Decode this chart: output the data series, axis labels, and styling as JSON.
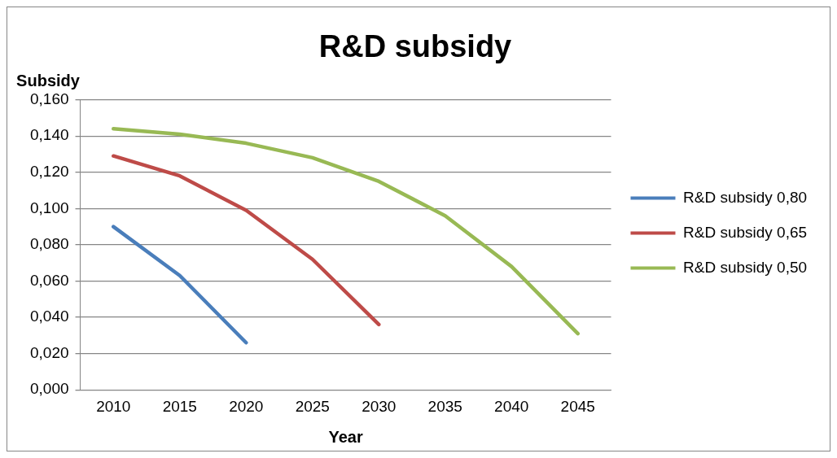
{
  "chart_data": {
    "type": "line",
    "title": "R&D subsidy",
    "xlabel": "Year",
    "ylabel": "Subsidy",
    "categories": [
      "2010",
      "2015",
      "2020",
      "2025",
      "2030",
      "2035",
      "2040",
      "2045"
    ],
    "series": [
      {
        "name": "R&D subsidy 0,80",
        "color": "#4a7ebb",
        "values": [
          0.09,
          0.063,
          0.026,
          null,
          null,
          null,
          null,
          null
        ]
      },
      {
        "name": "R&D subsidy 0,65",
        "color": "#be4b48",
        "values": [
          0.129,
          0.118,
          0.099,
          0.072,
          0.036,
          null,
          null,
          null
        ]
      },
      {
        "name": "R&D subsidy 0,50",
        "color": "#98b954",
        "values": [
          0.144,
          0.141,
          0.136,
          0.128,
          0.115,
          0.096,
          0.068,
          0.031
        ]
      }
    ],
    "ylim": [
      0,
      0.16
    ],
    "yticks": [
      {
        "value": 0,
        "label": "0,000"
      },
      {
        "value": 0.02,
        "label": "0,020"
      },
      {
        "value": 0.04,
        "label": "0,040"
      },
      {
        "value": 0.06,
        "label": "0,060"
      },
      {
        "value": 0.08,
        "label": "0,080"
      },
      {
        "value": 0.1,
        "label": "0,100"
      },
      {
        "value": 0.12,
        "label": "0,120"
      },
      {
        "value": 0.14,
        "label": "0,140"
      },
      {
        "value": 0.16,
        "label": "0,160"
      }
    ],
    "grid": "y",
    "legend": "right",
    "marker": "none",
    "line_style": "solid"
  }
}
